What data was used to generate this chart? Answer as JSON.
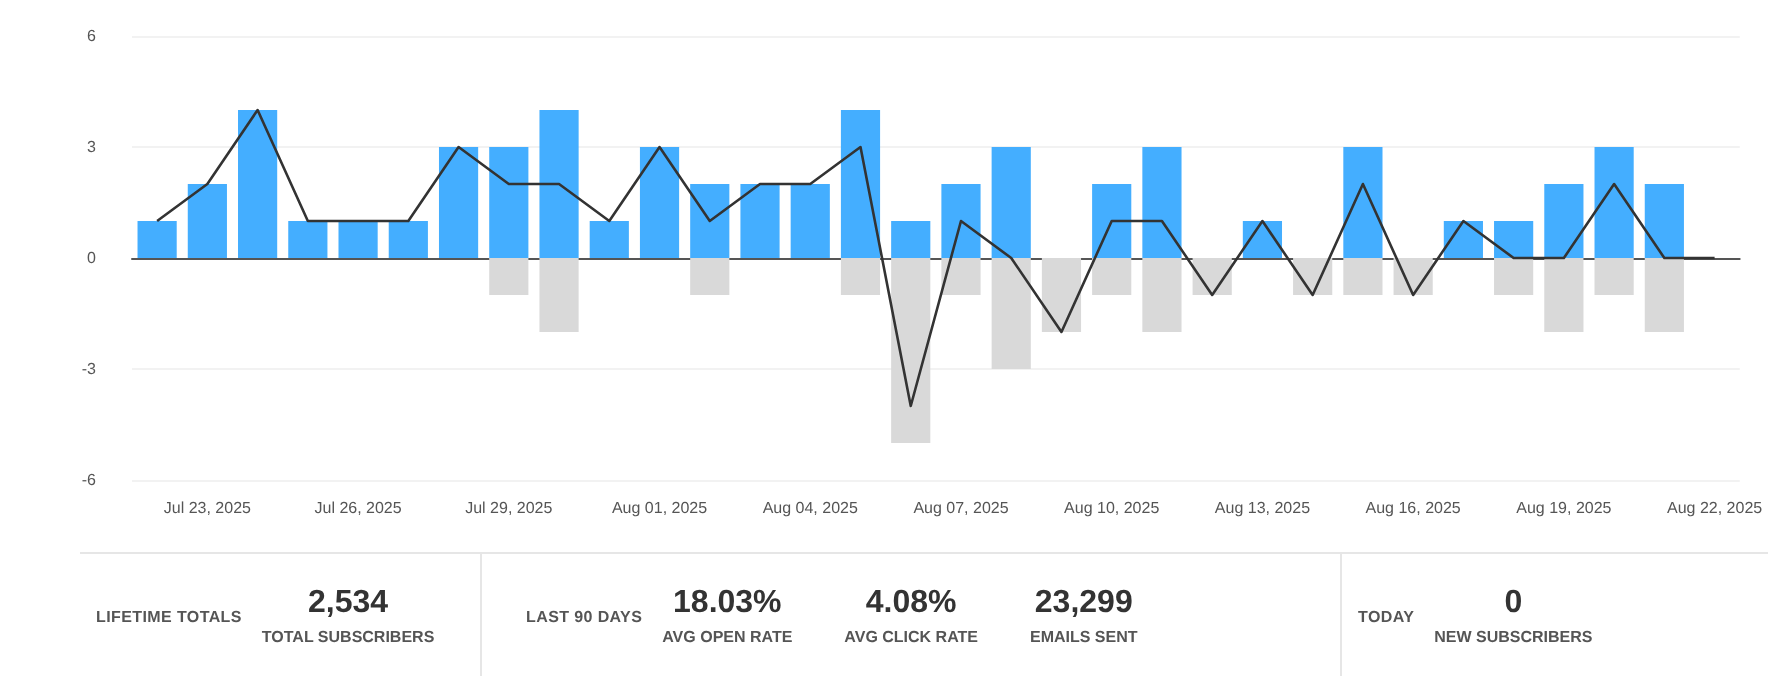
{
  "chart_data": [
    {
      "type": "bar",
      "stacked": true,
      "grid": "y",
      "ylim": [
        -6,
        6
      ],
      "yticks": [
        -6,
        -3,
        0,
        3,
        6
      ],
      "categories": [
        null,
        "Jul 23, 2025",
        null,
        null,
        "Jul 26, 2025",
        null,
        null,
        "Jul 29, 2025",
        null,
        null,
        "Aug 01, 2025",
        null,
        null,
        "Aug 04, 2025",
        null,
        null,
        "Aug 07, 2025",
        null,
        null,
        "Aug 10, 2025",
        null,
        null,
        "Aug 13, 2025",
        null,
        null,
        "Aug 16, 2025",
        null,
        null,
        "Aug 19, 2025",
        null,
        null,
        "Aug 22, 2025"
      ],
      "series": [
        {
          "color": "#44aeff",
          "values": [
            1,
            2,
            4,
            1,
            1,
            1,
            3,
            3,
            4,
            1,
            3,
            2,
            2,
            2,
            4,
            1,
            2,
            3,
            0,
            2,
            3,
            0,
            1,
            0,
            3,
            0,
            1,
            1,
            2,
            3,
            2,
            0
          ]
        },
        {
          "color": "#d9d9d9",
          "values": [
            0,
            0,
            0,
            0,
            0,
            0,
            0,
            -1,
            -2,
            0,
            0,
            -1,
            0,
            0,
            -1,
            -5,
            -1,
            -3,
            -2,
            -1,
            -2,
            -1,
            0,
            -1,
            -1,
            -1,
            0,
            -1,
            -2,
            -1,
            -2,
            0
          ]
        },
        {
          "type": "line",
          "color": "#333333",
          "marker": "none",
          "values": [
            1,
            2,
            4,
            1,
            1,
            1,
            3,
            2,
            2,
            1,
            3,
            1,
            2,
            2,
            3,
            -4,
            1,
            0,
            -2,
            1,
            1,
            -1,
            1,
            -1,
            2,
            -1,
            1,
            0,
            0,
            2,
            0,
            0
          ]
        }
      ]
    },
    {
      "type": "other",
      "annotations": [
        "LIFETIME TOTALS",
        "2,534",
        "TOTAL SUBSCRIBERS",
        "LAST 90 DAYS",
        "18.03%",
        "AVG OPEN RATE",
        "4.08%",
        "AVG CLICK RATE",
        "23,299",
        "EMAILS SENT",
        "TODAY",
        "0",
        "NEW SUBSCRIBERS"
      ]
    }
  ]
}
